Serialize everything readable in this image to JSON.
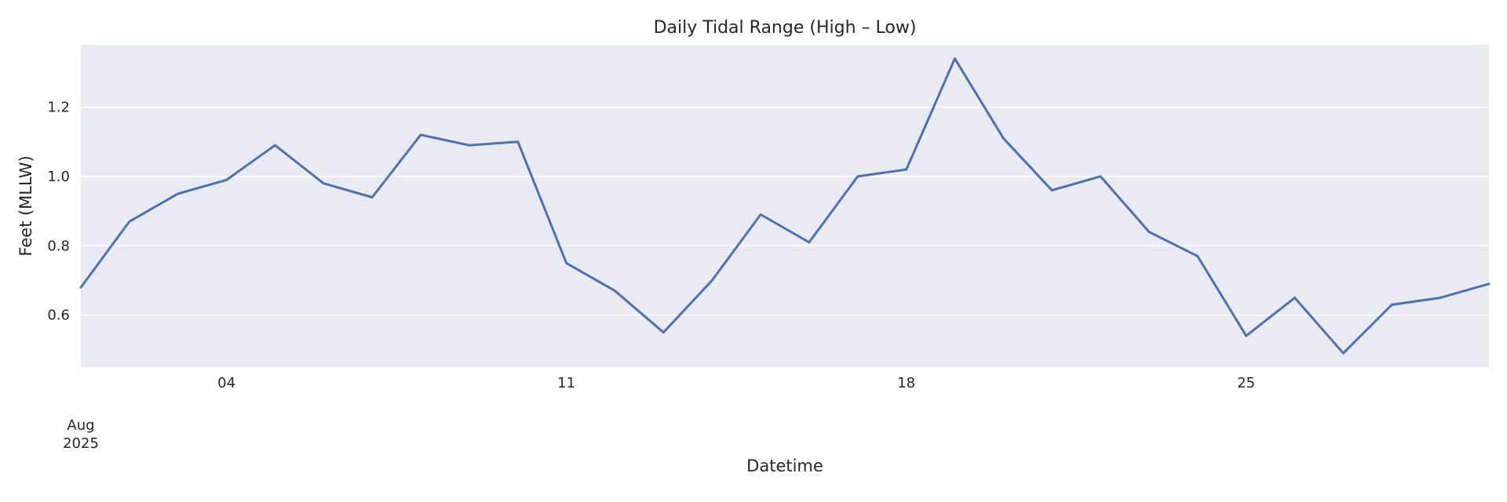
{
  "chart_data": {
    "type": "line",
    "title": "Daily Tidal Range (High – Low)",
    "xlabel": "Datetime",
    "ylabel": "Feet (MLLW)",
    "x_start_label": [
      "Aug",
      "2025"
    ],
    "x_ticks": [
      {
        "date": "2025-08-04",
        "label": "04"
      },
      {
        "date": "2025-08-11",
        "label": "11"
      },
      {
        "date": "2025-08-18",
        "label": "18"
      },
      {
        "date": "2025-08-25",
        "label": "25"
      }
    ],
    "xlim": [
      "2025-08-01",
      "2025-08-30"
    ],
    "y_ticks": [
      {
        "value": 0.6,
        "label": "0.6"
      },
      {
        "value": 0.8,
        "label": "0.8"
      },
      {
        "value": 1.0,
        "label": "1.0"
      },
      {
        "value": 1.2,
        "label": "1.2"
      }
    ],
    "ylim": [
      0.45,
      1.38
    ],
    "grid": true,
    "colors": {
      "background": "#eaeaf2",
      "grid": "#ffffff",
      "line": "#4c72b0"
    },
    "series": [
      {
        "x": [
          "2025-08-01",
          "2025-08-02",
          "2025-08-03",
          "2025-08-04",
          "2025-08-05",
          "2025-08-06",
          "2025-08-07",
          "2025-08-08",
          "2025-08-09",
          "2025-08-10",
          "2025-08-11",
          "2025-08-12",
          "2025-08-13",
          "2025-08-14",
          "2025-08-15",
          "2025-08-16",
          "2025-08-17",
          "2025-08-18",
          "2025-08-19",
          "2025-08-20",
          "2025-08-21",
          "2025-08-22",
          "2025-08-23",
          "2025-08-24",
          "2025-08-25",
          "2025-08-26",
          "2025-08-27",
          "2025-08-28",
          "2025-08-29",
          "2025-08-30"
        ],
        "y": [
          0.68,
          0.87,
          0.95,
          0.99,
          1.09,
          0.98,
          0.94,
          1.12,
          1.09,
          1.1,
          0.75,
          0.67,
          0.55,
          0.7,
          0.89,
          0.81,
          1.0,
          1.02,
          1.34,
          1.11,
          0.96,
          1.0,
          0.84,
          0.77,
          0.54,
          0.65,
          0.49,
          0.63,
          0.65,
          0.69
        ]
      }
    ]
  }
}
